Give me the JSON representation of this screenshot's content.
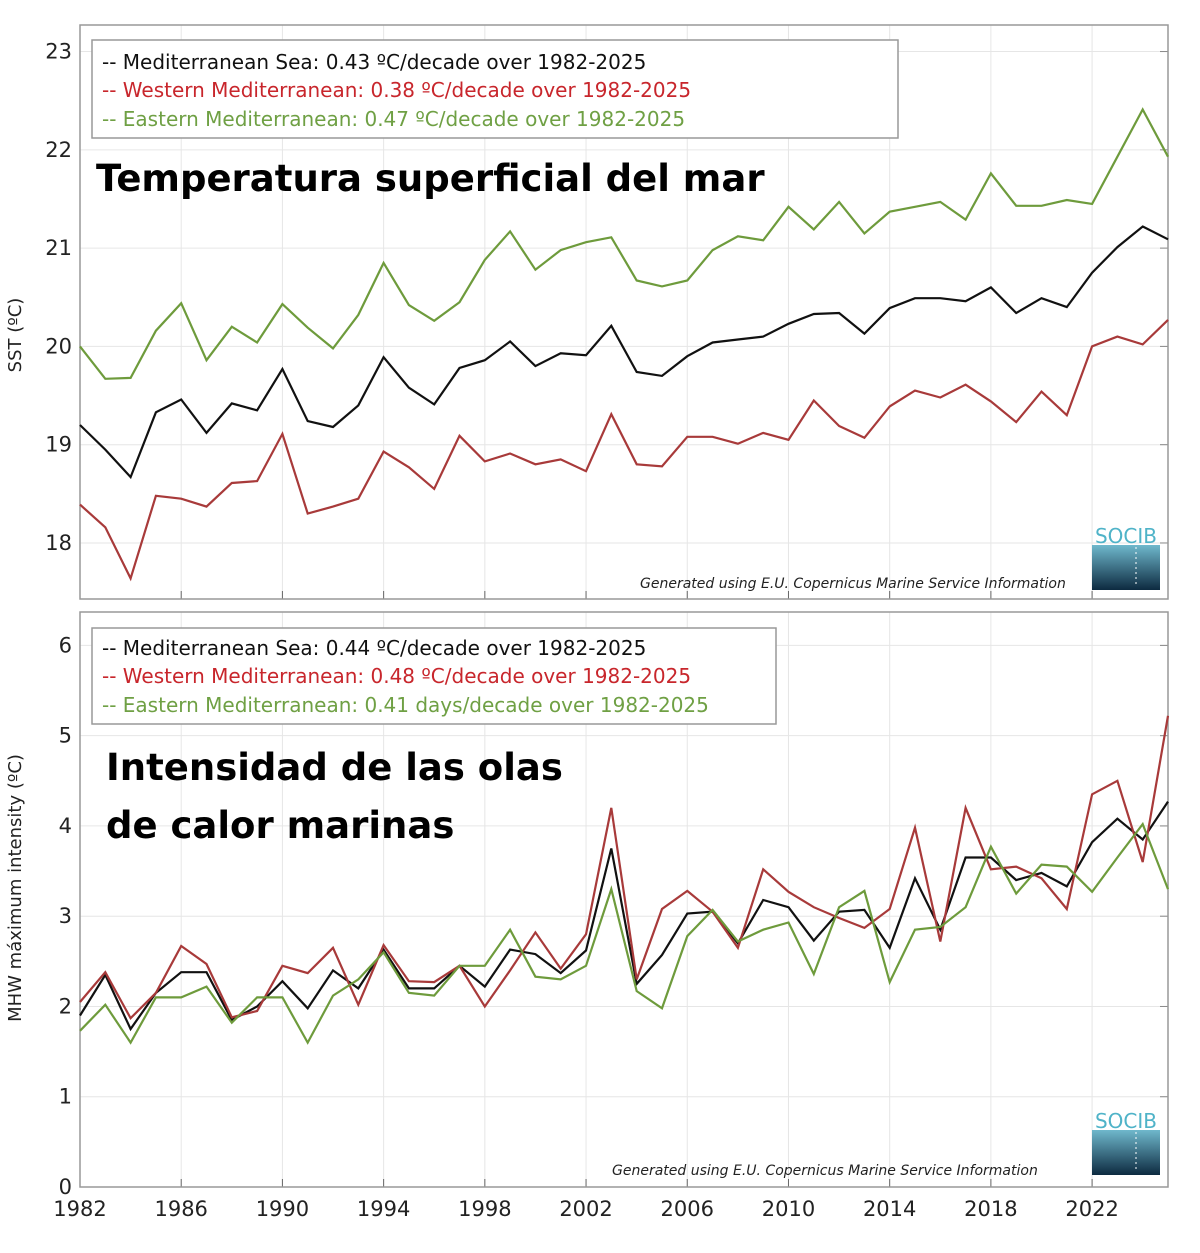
{
  "colors": {
    "mediterranean": "#111111",
    "western": "#a83a3a",
    "eastern": "#6e9b3c",
    "legend_western": "#c8262c",
    "legend_eastern": "#6fa044",
    "logo": "#4fb3c8"
  },
  "x_tick_labels": [
    "1982",
    "1986",
    "1990",
    "1994",
    "1998",
    "2002",
    "2006",
    "2010",
    "2014",
    "2018",
    "2022"
  ],
  "chart_data": [
    {
      "type": "line",
      "title": "Temperatura superficial del mar",
      "xlabel": "",
      "ylabel": "SST (ºC)",
      "xlim": [
        1982,
        2025
      ],
      "ylim": [
        17.43,
        23.27
      ],
      "yticks": [
        18,
        19,
        20,
        21,
        22,
        23
      ],
      "grid": true,
      "legend_position": "top-left",
      "legend": [
        "-- Mediterranean Sea: 0.43 ºC/decade over 1982-2025",
        "-- Western Mediterranean: 0.38 ºC/decade over 1982-2025",
        "-- Eastern Mediterranean: 0.47 ºC/decade over 1982-2025"
      ],
      "credit": "Generated using E.U. Copernicus Marine Service Information",
      "logo": "SOCIB",
      "x": [
        1982,
        1983,
        1984,
        1985,
        1986,
        1987,
        1988,
        1989,
        1990,
        1991,
        1992,
        1993,
        1994,
        1995,
        1996,
        1997,
        1998,
        1999,
        2000,
        2001,
        2002,
        2003,
        2004,
        2005,
        2006,
        2007,
        2008,
        2009,
        2010,
        2011,
        2012,
        2013,
        2014,
        2015,
        2016,
        2017,
        2018,
        2019,
        2020,
        2021,
        2022,
        2023,
        2024,
        2025
      ],
      "series": [
        {
          "key": "mediterranean",
          "values": [
            19.2,
            18.95,
            18.67,
            19.33,
            19.46,
            19.12,
            19.42,
            19.35,
            19.77,
            19.24,
            19.18,
            19.4,
            19.89,
            19.58,
            19.41,
            19.78,
            19.86,
            20.05,
            19.8,
            19.93,
            19.91,
            20.21,
            19.74,
            19.7,
            19.9,
            20.04,
            20.07,
            20.1,
            20.23,
            20.33,
            20.34,
            20.13,
            20.39,
            20.49,
            20.49,
            20.46,
            20.6,
            20.34,
            20.49,
            20.4,
            20.75,
            21.01,
            21.22,
            21.09
          ]
        },
        {
          "key": "western",
          "values": [
            18.39,
            18.16,
            17.64,
            18.48,
            18.45,
            18.37,
            18.61,
            18.63,
            19.11,
            18.3,
            18.37,
            18.45,
            18.93,
            18.77,
            18.55,
            19.09,
            18.83,
            18.91,
            18.8,
            18.85,
            18.73,
            19.31,
            18.8,
            18.78,
            19.08,
            19.08,
            19.01,
            19.12,
            19.05,
            19.45,
            19.19,
            19.07,
            19.39,
            19.55,
            19.48,
            19.61,
            19.44,
            19.23,
            19.54,
            19.3,
            20.0,
            20.1,
            20.02,
            20.27
          ]
        },
        {
          "key": "eastern",
          "values": [
            20.0,
            19.67,
            19.68,
            20.16,
            20.44,
            19.86,
            20.2,
            20.04,
            20.43,
            20.19,
            19.98,
            20.32,
            20.85,
            20.42,
            20.26,
            20.45,
            20.88,
            21.17,
            20.78,
            20.98,
            21.06,
            21.11,
            20.67,
            20.61,
            20.67,
            20.98,
            21.12,
            21.08,
            21.42,
            21.19,
            21.47,
            21.15,
            21.37,
            21.42,
            21.47,
            21.29,
            21.76,
            21.43,
            21.43,
            21.49,
            21.45,
            21.93,
            22.41,
            21.93
          ]
        }
      ]
    },
    {
      "type": "line",
      "title": "Intensidad de las olas de calor marinas",
      "title_lines": [
        "Intensidad de las olas",
        "de calor marinas"
      ],
      "xlabel": "",
      "ylabel": "MHW máximum  intensity (ºC)",
      "xlim": [
        1982,
        2025
      ],
      "ylim": [
        0,
        6.37
      ],
      "yticks": [
        0,
        1,
        2,
        3,
        4,
        5,
        6
      ],
      "grid": true,
      "legend_position": "top-left",
      "legend": [
        "-- Mediterranean Sea: 0.44 ºC/decade over 1982-2025",
        "-- Western Mediterranean: 0.48 ºC/decade over 1982-2025",
        "-- Eastern Mediterranean: 0.41 days/decade over 1982-2025"
      ],
      "credit": "Generated using E.U. Copernicus Marine Service Information",
      "logo": "SOCIB",
      "x": [
        1982,
        1983,
        1984,
        1985,
        1986,
        1987,
        1988,
        1989,
        1990,
        1991,
        1992,
        1993,
        1994,
        1995,
        1996,
        1997,
        1998,
        1999,
        2000,
        2001,
        2002,
        2003,
        2004,
        2005,
        2006,
        2007,
        2008,
        2009,
        2010,
        2011,
        2012,
        2013,
        2014,
        2015,
        2016,
        2017,
        2018,
        2019,
        2020,
        2021,
        2022,
        2023,
        2024,
        2025
      ],
      "series": [
        {
          "key": "mediterranean",
          "values": [
            1.9,
            2.35,
            1.75,
            2.15,
            2.38,
            2.38,
            1.85,
            2.0,
            2.28,
            1.98,
            2.4,
            2.2,
            2.63,
            2.2,
            2.2,
            2.45,
            2.22,
            2.63,
            2.58,
            2.37,
            2.62,
            3.75,
            2.25,
            2.57,
            3.03,
            3.05,
            2.7,
            3.18,
            3.1,
            2.73,
            3.05,
            3.07,
            2.65,
            3.42,
            2.85,
            3.65,
            3.65,
            3.4,
            3.48,
            3.33,
            3.82,
            4.08,
            3.85,
            4.27
          ]
        },
        {
          "key": "western",
          "values": [
            2.05,
            2.38,
            1.87,
            2.15,
            2.67,
            2.47,
            1.88,
            1.95,
            2.45,
            2.37,
            2.65,
            2.02,
            2.68,
            2.28,
            2.27,
            2.45,
            2.0,
            2.4,
            2.82,
            2.42,
            2.8,
            4.2,
            2.3,
            3.08,
            3.28,
            3.05,
            2.65,
            3.52,
            3.27,
            3.1,
            2.98,
            2.87,
            3.08,
            3.98,
            2.72,
            4.2,
            3.52,
            3.55,
            3.42,
            3.08,
            4.35,
            4.5,
            3.6,
            5.22
          ]
        },
        {
          "key": "eastern",
          "values": [
            1.73,
            2.02,
            1.6,
            2.1,
            2.1,
            2.22,
            1.82,
            2.1,
            2.1,
            1.6,
            2.12,
            2.3,
            2.6,
            2.15,
            2.12,
            2.45,
            2.45,
            2.85,
            2.33,
            2.3,
            2.45,
            3.3,
            2.17,
            1.98,
            2.78,
            3.07,
            2.72,
            2.85,
            2.93,
            2.36,
            3.1,
            3.28,
            2.27,
            2.85,
            2.88,
            3.1,
            3.77,
            3.25,
            3.57,
            3.55,
            3.27,
            3.65,
            4.02,
            3.3
          ]
        }
      ]
    }
  ]
}
